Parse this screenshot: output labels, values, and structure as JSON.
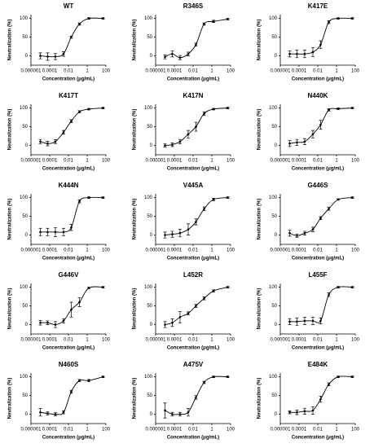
{
  "chart_data": [
    {
      "type": "scatter",
      "title": "WT",
      "x_label": "Concentration (μg/mL)",
      "y_label": "Neutralization (%)",
      "x": [
        1e-05,
        6e-05,
        0.0004,
        0.003,
        0.02,
        0.15,
        1.5,
        50
      ],
      "values": [
        0,
        -2,
        -2,
        5,
        50,
        85,
        100,
        100
      ],
      "errors": [
        8,
        10,
        8,
        6,
        3,
        3,
        2,
        2
      ],
      "xlim": [
        1e-06,
        100
      ],
      "ylim": [
        -25,
        110
      ],
      "xticks": [
        1e-06,
        0.0001,
        0.01,
        1,
        100
      ],
      "yticks": [
        0,
        50,
        100
      ],
      "log_x": true,
      "color": "#000000"
    },
    {
      "type": "scatter",
      "title": "R346S",
      "x_label": "Concentration (μg/mL)",
      "y_label": "Neutralization (%)",
      "x": [
        1e-05,
        6e-05,
        0.0004,
        0.003,
        0.02,
        0.15,
        1.5,
        50
      ],
      "values": [
        -3,
        5,
        -5,
        5,
        30,
        85,
        92,
        98
      ],
      "errors": [
        5,
        8,
        6,
        5,
        4,
        3,
        3,
        2
      ],
      "xlim": [
        1e-06,
        100
      ],
      "ylim": [
        -25,
        110
      ],
      "xticks": [
        1e-06,
        0.0001,
        0.01,
        1,
        100
      ],
      "yticks": [
        0,
        50,
        100
      ],
      "log_x": true,
      "color": "#000000"
    },
    {
      "type": "scatter",
      "title": "K417E",
      "x_label": "Concentration (μg/mL)",
      "y_label": "Neutralization (%)",
      "x": [
        1e-05,
        6e-05,
        0.0004,
        0.003,
        0.02,
        0.15,
        1.5,
        50
      ],
      "values": [
        5,
        5,
        5,
        10,
        30,
        90,
        100,
        100
      ],
      "errors": [
        8,
        10,
        10,
        12,
        10,
        4,
        2,
        2
      ],
      "xlim": [
        1e-06,
        100
      ],
      "ylim": [
        -25,
        110
      ],
      "xticks": [
        1e-06,
        0.0001,
        0.01,
        1,
        100
      ],
      "yticks": [
        0,
        50,
        100
      ],
      "log_x": true,
      "color": "#000000"
    },
    {
      "type": "scatter",
      "title": "K417T",
      "x_label": "Concentration (μg/mL)",
      "y_label": "Neutralization (%)",
      "x": [
        1e-05,
        6e-05,
        0.0004,
        0.003,
        0.02,
        0.15,
        1.5,
        50
      ],
      "values": [
        10,
        5,
        10,
        35,
        65,
        90,
        97,
        100
      ],
      "errors": [
        6,
        6,
        5,
        5,
        4,
        3,
        2,
        2
      ],
      "xlim": [
        1e-06,
        100
      ],
      "ylim": [
        -25,
        110
      ],
      "xticks": [
        1e-06,
        0.0001,
        0.01,
        1,
        100
      ],
      "yticks": [
        0,
        50,
        100
      ],
      "log_x": true,
      "color": "#000000"
    },
    {
      "type": "scatter",
      "title": "K417N",
      "x_label": "Concentration (μg/mL)",
      "y_label": "Neutralization (%)",
      "x": [
        1e-05,
        6e-05,
        0.0004,
        0.003,
        0.02,
        0.15,
        1.5,
        50
      ],
      "values": [
        0,
        2,
        10,
        30,
        50,
        85,
        97,
        100
      ],
      "errors": [
        4,
        5,
        6,
        10,
        12,
        5,
        2,
        2
      ],
      "xlim": [
        1e-06,
        100
      ],
      "ylim": [
        -25,
        110
      ],
      "xticks": [
        1e-06,
        0.0001,
        0.01,
        1,
        100
      ],
      "yticks": [
        0,
        50,
        100
      ],
      "log_x": true,
      "color": "#000000"
    },
    {
      "type": "scatter",
      "title": "N440K",
      "x_label": "Concentration (μg/mL)",
      "y_label": "Neutralization (%)",
      "x": [
        1e-05,
        6e-05,
        0.0004,
        0.003,
        0.02,
        0.15,
        1.5,
        50
      ],
      "values": [
        5,
        8,
        10,
        30,
        55,
        95,
        98,
        100
      ],
      "errors": [
        8,
        8,
        8,
        10,
        12,
        3,
        2,
        2
      ],
      "xlim": [
        1e-06,
        100
      ],
      "ylim": [
        -25,
        110
      ],
      "xticks": [
        1e-06,
        0.0001,
        0.01,
        1,
        100
      ],
      "yticks": [
        0,
        50,
        100
      ],
      "log_x": true,
      "color": "#000000"
    },
    {
      "type": "scatter",
      "title": "K444N",
      "x_label": "Concentration (μg/mL)",
      "y_label": "Neutralization (%)",
      "x": [
        1e-05,
        6e-05,
        0.0004,
        0.003,
        0.02,
        0.15,
        1.5,
        50
      ],
      "values": [
        8,
        8,
        8,
        8,
        20,
        90,
        100,
        100
      ],
      "errors": [
        10,
        10,
        12,
        10,
        8,
        4,
        2,
        2
      ],
      "xlim": [
        1e-06,
        100
      ],
      "ylim": [
        -25,
        110
      ],
      "xticks": [
        1e-06,
        0.0001,
        0.01,
        1,
        100
      ],
      "yticks": [
        0,
        50,
        100
      ],
      "log_x": true,
      "color": "#000000"
    },
    {
      "type": "scatter",
      "title": "V445A",
      "x_label": "Concentration (μg/mL)",
      "y_label": "Neutralization (%)",
      "x": [
        1e-05,
        6e-05,
        0.0004,
        0.003,
        0.02,
        0.15,
        1.5,
        50
      ],
      "values": [
        0,
        2,
        5,
        15,
        35,
        70,
        95,
        100
      ],
      "errors": [
        8,
        8,
        10,
        15,
        8,
        5,
        3,
        2
      ],
      "xlim": [
        1e-06,
        100
      ],
      "ylim": [
        -25,
        110
      ],
      "xticks": [
        1e-06,
        0.0001,
        0.01,
        1,
        100
      ],
      "yticks": [
        0,
        50,
        100
      ],
      "log_x": true,
      "color": "#000000"
    },
    {
      "type": "scatter",
      "title": "G446S",
      "x_label": "Concentration (μg/mL)",
      "y_label": "Neutralization (%)",
      "x": [
        1e-05,
        6e-05,
        0.0004,
        0.003,
        0.02,
        0.15,
        1.5,
        50
      ],
      "values": [
        5,
        -2,
        5,
        15,
        45,
        70,
        95,
        100
      ],
      "errors": [
        8,
        4,
        5,
        6,
        4,
        4,
        2,
        2
      ],
      "xlim": [
        1e-06,
        100
      ],
      "ylim": [
        -25,
        110
      ],
      "xticks": [
        1e-06,
        0.0001,
        0.01,
        1,
        100
      ],
      "yticks": [
        0,
        50,
        100
      ],
      "log_x": true,
      "color": "#000000"
    },
    {
      "type": "scatter",
      "title": "G446V",
      "x_label": "Concentration (μg/mL)",
      "y_label": "Neutralization (%)",
      "x": [
        1e-05,
        6e-05,
        0.0004,
        0.003,
        0.02,
        0.15,
        1.5,
        50
      ],
      "values": [
        5,
        5,
        0,
        10,
        40,
        60,
        98,
        100
      ],
      "errors": [
        6,
        5,
        8,
        6,
        20,
        12,
        2,
        2
      ],
      "xlim": [
        1e-06,
        100
      ],
      "ylim": [
        -25,
        110
      ],
      "xticks": [
        1e-06,
        0.0001,
        0.01,
        1,
        100
      ],
      "yticks": [
        0,
        50,
        100
      ],
      "log_x": true,
      "color": "#000000"
    },
    {
      "type": "scatter",
      "title": "L452R",
      "x_label": "Concentration (μg/mL)",
      "y_label": "Neutralization (%)",
      "x": [
        1e-05,
        6e-05,
        0.0004,
        0.003,
        0.02,
        0.15,
        1.5,
        50
      ],
      "values": [
        0,
        5,
        20,
        30,
        50,
        70,
        90,
        100
      ],
      "errors": [
        8,
        10,
        15,
        4,
        4,
        4,
        3,
        2
      ],
      "xlim": [
        1e-06,
        100
      ],
      "ylim": [
        -25,
        110
      ],
      "xticks": [
        1e-06,
        0.0001,
        0.01,
        1,
        100
      ],
      "yticks": [
        0,
        50,
        100
      ],
      "log_x": true,
      "color": "#000000"
    },
    {
      "type": "scatter",
      "title": "L455F",
      "x_label": "Concentration (μg/mL)",
      "y_label": "Neutralization (%)",
      "x": [
        1e-05,
        6e-05,
        0.0004,
        0.003,
        0.02,
        0.15,
        1.5,
        50
      ],
      "values": [
        8,
        8,
        10,
        10,
        10,
        80,
        100,
        100
      ],
      "errors": [
        8,
        10,
        10,
        10,
        8,
        5,
        2,
        2
      ],
      "xlim": [
        1e-06,
        100
      ],
      "ylim": [
        -25,
        110
      ],
      "xticks": [
        1e-06,
        0.0001,
        0.01,
        1,
        100
      ],
      "yticks": [
        0,
        50,
        100
      ],
      "log_x": true,
      "color": "#000000"
    },
    {
      "type": "scatter",
      "title": "N460S",
      "x_label": "Concentration (μg/mL)",
      "y_label": "Neutralization (%)",
      "x": [
        1e-05,
        6e-05,
        0.0004,
        0.003,
        0.02,
        0.15,
        1.5,
        50
      ],
      "values": [
        5,
        2,
        0,
        5,
        60,
        90,
        90,
        100
      ],
      "errors": [
        10,
        4,
        4,
        4,
        4,
        3,
        3,
        2
      ],
      "xlim": [
        1e-06,
        100
      ],
      "ylim": [
        -25,
        110
      ],
      "xticks": [
        1e-06,
        0.0001,
        0.01,
        1,
        100
      ],
      "yticks": [
        0,
        50,
        100
      ],
      "log_x": true,
      "color": "#000000"
    },
    {
      "type": "scatter",
      "title": "A475V",
      "x_label": "Concentration (μg/mL)",
      "y_label": "Neutralization (%)",
      "x": [
        1e-05,
        6e-05,
        0.0004,
        0.003,
        0.02,
        0.15,
        1.5,
        50
      ],
      "values": [
        10,
        0,
        0,
        5,
        45,
        85,
        100,
        100
      ],
      "errors": [
        20,
        5,
        5,
        10,
        5,
        3,
        2,
        2
      ],
      "xlim": [
        1e-06,
        100
      ],
      "ylim": [
        -25,
        110
      ],
      "xticks": [
        1e-06,
        0.0001,
        0.01,
        1,
        100
      ],
      "yticks": [
        0,
        50,
        100
      ],
      "log_x": true,
      "color": "#000000"
    },
    {
      "type": "scatter",
      "title": "E484K",
      "x_label": "Concentration (μg/mL)",
      "y_label": "Neutralization (%)",
      "x": [
        1e-05,
        6e-05,
        0.0004,
        0.003,
        0.02,
        0.15,
        1.5,
        50
      ],
      "values": [
        5,
        5,
        8,
        10,
        40,
        80,
        100,
        100
      ],
      "errors": [
        4,
        6,
        8,
        10,
        8,
        4,
        2,
        2
      ],
      "xlim": [
        1e-06,
        100
      ],
      "ylim": [
        -25,
        110
      ],
      "xticks": [
        1e-06,
        0.0001,
        0.01,
        1,
        100
      ],
      "yticks": [
        0,
        50,
        100
      ],
      "log_x": true,
      "color": "#000000"
    }
  ]
}
